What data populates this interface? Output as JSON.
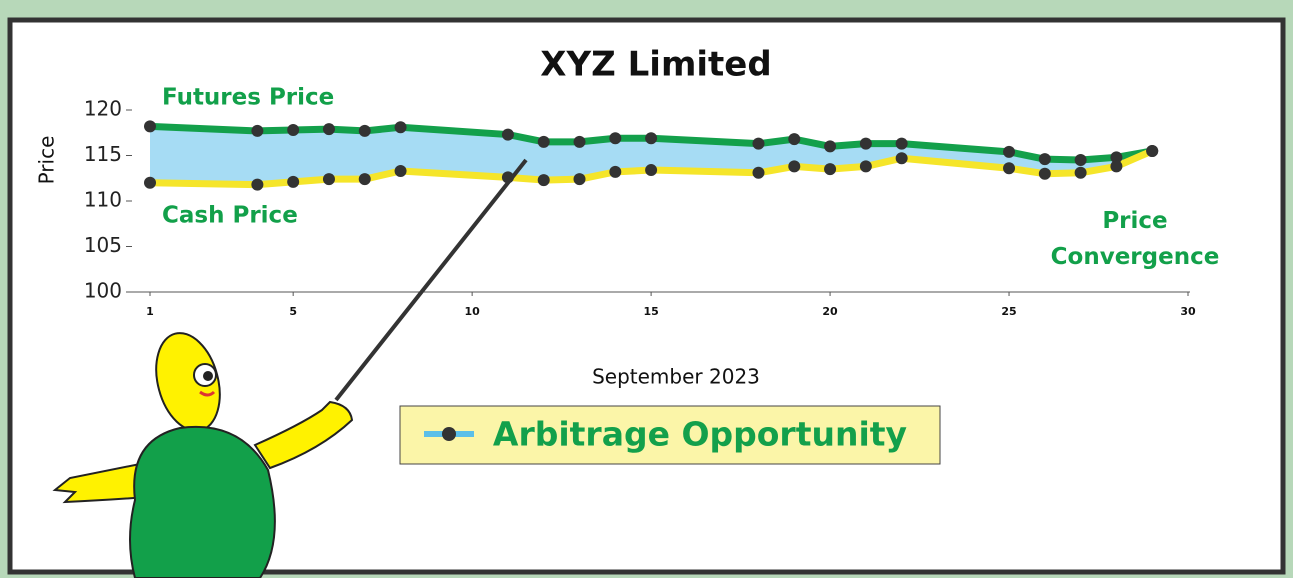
{
  "chart_data": {
    "type": "line",
    "title": "XYZ Limited",
    "x_label": "September 2023",
    "y_label": "Price",
    "x": [
      1,
      4,
      5,
      6,
      7,
      8,
      11,
      12,
      13,
      14,
      15,
      18,
      19,
      20,
      21,
      22,
      25,
      26,
      27,
      28,
      29
    ],
    "series": [
      {
        "name": "Futures Price",
        "color": "#13a04b",
        "values": [
          118.2,
          117.7,
          117.8,
          117.9,
          117.7,
          118.1,
          117.3,
          116.5,
          116.5,
          116.9,
          116.9,
          116.3,
          116.8,
          116.0,
          116.3,
          116.3,
          115.4,
          114.6,
          114.5,
          114.8,
          115.5
        ]
      },
      {
        "name": "Cash Price",
        "color": "#f5e52a",
        "values": [
          112.0,
          111.8,
          112.1,
          112.4,
          112.4,
          113.3,
          112.6,
          112.3,
          112.4,
          113.2,
          113.4,
          113.1,
          113.8,
          113.5,
          113.8,
          114.7,
          113.6,
          113.0,
          113.1,
          113.8,
          115.5
        ]
      }
    ],
    "band_color": "#a6dcf4",
    "marker_color": "#333333",
    "legend_label": "Arbitrage Opportunity",
    "annotation": "Price Convergence",
    "xlim": [
      1,
      30
    ],
    "xticks": [
      1,
      5,
      10,
      15,
      20,
      25,
      30
    ],
    "ylim": [
      100,
      120
    ],
    "yticks": [
      100,
      105,
      110,
      115,
      120
    ],
    "grid": false
  }
}
